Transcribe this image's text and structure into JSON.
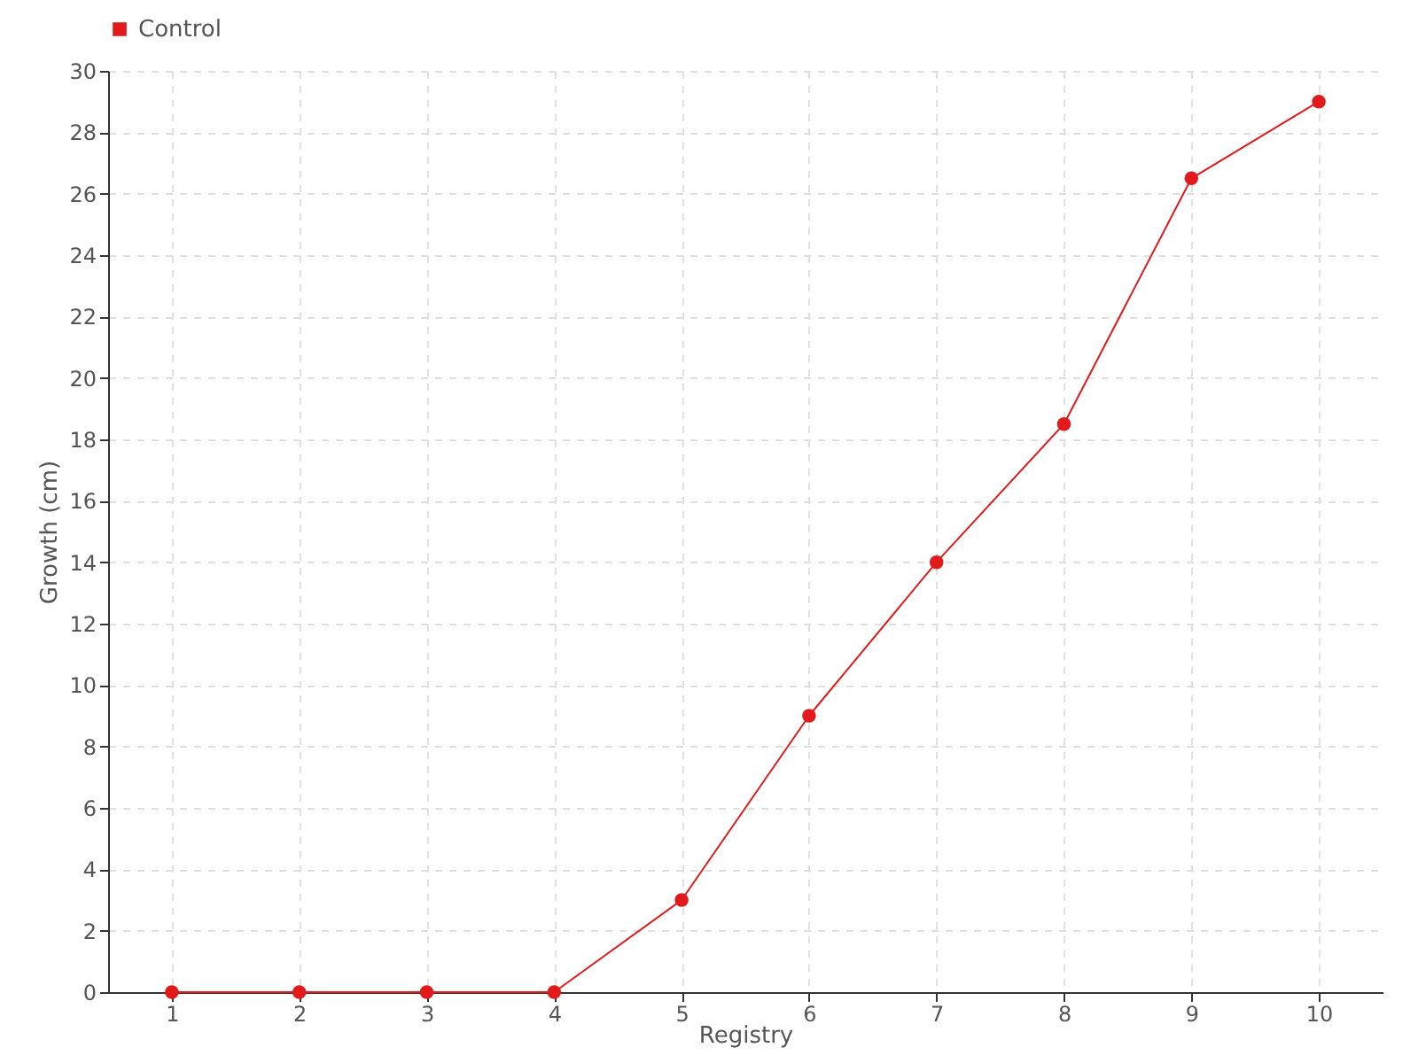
{
  "chart_data": {
    "type": "line",
    "xlabel": "Registry",
    "ylabel": "Growth (cm)",
    "categories": [
      "1",
      "2",
      "3",
      "4",
      "5",
      "6",
      "7",
      "8",
      "9",
      "10"
    ],
    "series": [
      {
        "name": "Control",
        "color": "#e31a1c",
        "values": [
          0,
          0,
          0,
          0,
          3,
          9,
          14,
          18.5,
          26.5,
          29
        ]
      }
    ],
    "ylim": [
      0,
      30
    ],
    "yticks": [
      0,
      2,
      4,
      6,
      8,
      10,
      12,
      14,
      16,
      18,
      20,
      22,
      24,
      26,
      28,
      30
    ],
    "grid": true,
    "legend": "top left",
    "marker": "circle",
    "line_style": "solid"
  }
}
